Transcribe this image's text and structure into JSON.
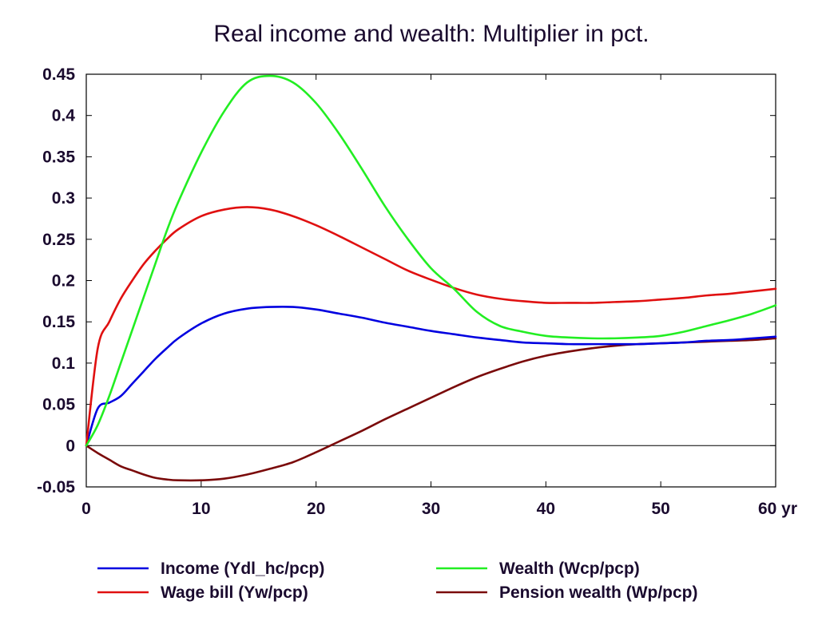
{
  "chart_data": {
    "type": "line",
    "title": "Real income and wealth: Multiplier in pct.",
    "xlabel": "",
    "ylabel": "",
    "x_unit_label": "yr",
    "xlim": [
      0,
      60
    ],
    "ylim": [
      -0.05,
      0.45
    ],
    "x_ticks": [
      0,
      10,
      20,
      30,
      40,
      50,
      60
    ],
    "x_tick_labels": [
      "0",
      "10",
      "20",
      "30",
      "40",
      "50",
      "60 yr"
    ],
    "y_ticks": [
      -0.05,
      0,
      0.05,
      0.1,
      0.15,
      0.2,
      0.25,
      0.3,
      0.35,
      0.4,
      0.45
    ],
    "y_tick_labels": [
      "-0.05",
      "0",
      "0.05",
      "0.1",
      "0.15",
      "0.2",
      "0.25",
      "0.3",
      "0.35",
      "0.4",
      "0.45"
    ],
    "grid": false,
    "zero_line": true,
    "legend_position": "bottom",
    "x": [
      0,
      1,
      2,
      3,
      4,
      5,
      6,
      7,
      8,
      10,
      12,
      14,
      16,
      18,
      20,
      22,
      24,
      26,
      28,
      30,
      32,
      34,
      36,
      38,
      40,
      42,
      44,
      46,
      48,
      50,
      52,
      54,
      56,
      58,
      60
    ],
    "series": [
      {
        "name": "Income (Ydl_hc/pcp)",
        "color": "#0000e0",
        "values": [
          0,
          0.045,
          0.052,
          0.06,
          0.075,
          0.09,
          0.105,
          0.118,
          0.13,
          0.148,
          0.16,
          0.166,
          0.168,
          0.168,
          0.165,
          0.16,
          0.155,
          0.149,
          0.144,
          0.139,
          0.135,
          0.131,
          0.128,
          0.125,
          0.124,
          0.123,
          0.123,
          0.123,
          0.123,
          0.124,
          0.125,
          0.127,
          0.128,
          0.13,
          0.132
        ]
      },
      {
        "name": "Wage bill (Yw/pcp)",
        "color": "#e01010",
        "values": [
          0,
          0.118,
          0.15,
          0.178,
          0.2,
          0.22,
          0.236,
          0.25,
          0.262,
          0.278,
          0.286,
          0.289,
          0.286,
          0.278,
          0.267,
          0.254,
          0.24,
          0.226,
          0.212,
          0.201,
          0.191,
          0.183,
          0.178,
          0.175,
          0.173,
          0.173,
          0.173,
          0.174,
          0.175,
          0.177,
          0.179,
          0.182,
          0.184,
          0.187,
          0.19
        ]
      },
      {
        "name": "Wealth (Wcp/pcp)",
        "color": "#22ee22",
        "values": [
          0,
          0.025,
          0.06,
          0.1,
          0.14,
          0.18,
          0.22,
          0.26,
          0.295,
          0.355,
          0.405,
          0.44,
          0.448,
          0.44,
          0.415,
          0.378,
          0.335,
          0.29,
          0.25,
          0.215,
          0.19,
          0.162,
          0.145,
          0.138,
          0.133,
          0.131,
          0.13,
          0.13,
          0.131,
          0.133,
          0.138,
          0.145,
          0.152,
          0.16,
          0.17
        ]
      },
      {
        "name": "Pension wealth (Wp/pcp)",
        "color": "#7a0a0a",
        "values": [
          0,
          -0.009,
          -0.017,
          -0.025,
          -0.03,
          -0.035,
          -0.039,
          -0.041,
          -0.042,
          -0.042,
          -0.04,
          -0.035,
          -0.028,
          -0.02,
          -0.008,
          0.005,
          0.018,
          0.032,
          0.045,
          0.058,
          0.071,
          0.083,
          0.093,
          0.102,
          0.109,
          0.114,
          0.118,
          0.121,
          0.123,
          0.124,
          0.125,
          0.126,
          0.127,
          0.128,
          0.13
        ]
      }
    ]
  }
}
